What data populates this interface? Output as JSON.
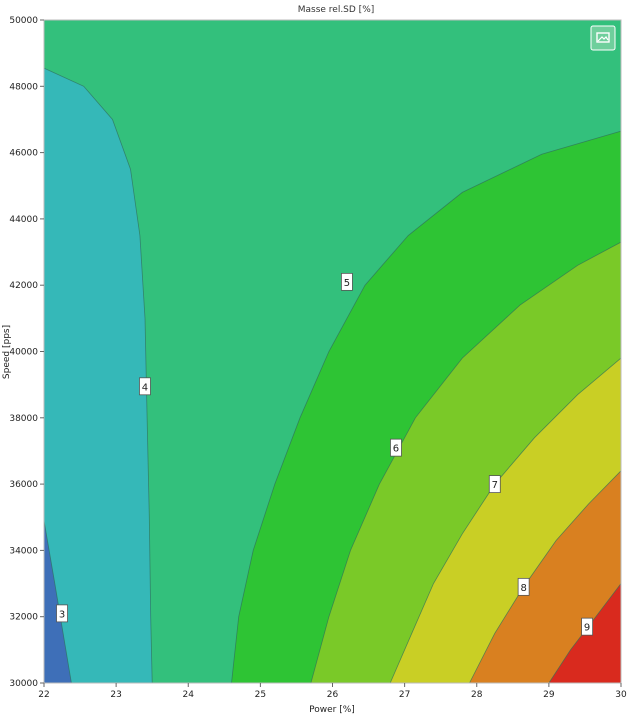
{
  "chart_data": {
    "type": "contour",
    "title": "Masse rel.SD [%]",
    "xlabel": "Power [%]",
    "ylabel": "Speed [pps]",
    "xlim": [
      22,
      30
    ],
    "ylim": [
      30000,
      50000
    ],
    "x_ticks": [
      "22",
      "23",
      "24",
      "25",
      "26",
      "27",
      "28",
      "29",
      "30"
    ],
    "y_ticks": [
      "30000",
      "32000",
      "34000",
      "36000",
      "38000",
      "40000",
      "42000",
      "44000",
      "46000",
      "48000",
      "50000"
    ],
    "levels": [
      3,
      4,
      5,
      6,
      7,
      8,
      9
    ],
    "region_colors": [
      "#3e6fb8",
      "#35b8b8",
      "#33c07c",
      "#2ec434",
      "#7ac928",
      "#c9cf25",
      "#d98020",
      "#d92a1e"
    ],
    "contours": [
      {
        "label": "3",
        "label_at": [
          22.25,
          32100
        ],
        "points": [
          [
            22.0,
            34900
          ],
          [
            22.15,
            33000
          ],
          [
            22.28,
            31300
          ],
          [
            22.38,
            30000
          ]
        ]
      },
      {
        "label": "4",
        "label_at": [
          23.4,
          38950
        ],
        "points": [
          [
            22.0,
            48550
          ],
          [
            22.55,
            48000
          ],
          [
            22.95,
            47000
          ],
          [
            23.2,
            45500
          ],
          [
            23.33,
            43500
          ],
          [
            23.4,
            41000
          ],
          [
            23.43,
            38000
          ],
          [
            23.46,
            35000
          ],
          [
            23.48,
            32000
          ],
          [
            23.5,
            30000
          ]
        ]
      },
      {
        "label": "5",
        "label_at": [
          26.2,
          42100
        ],
        "points": [
          [
            24.6,
            30000
          ],
          [
            24.7,
            32000
          ],
          [
            24.9,
            34000
          ],
          [
            25.2,
            36000
          ],
          [
            25.55,
            38000
          ],
          [
            25.95,
            40000
          ],
          [
            26.45,
            42000
          ],
          [
            27.05,
            43500
          ],
          [
            27.8,
            44800
          ],
          [
            28.9,
            45950
          ],
          [
            30.0,
            46650
          ]
        ]
      },
      {
        "label": "6",
        "label_at": [
          26.88,
          37100
        ],
        "points": [
          [
            25.7,
            30000
          ],
          [
            25.95,
            32000
          ],
          [
            26.25,
            34000
          ],
          [
            26.65,
            36000
          ],
          [
            27.15,
            38000
          ],
          [
            27.8,
            39800
          ],
          [
            28.6,
            41400
          ],
          [
            29.4,
            42600
          ],
          [
            30.0,
            43300
          ]
        ]
      },
      {
        "label": "7",
        "label_at": [
          28.25,
          36000
        ],
        "points": [
          [
            26.8,
            30000
          ],
          [
            27.1,
            31500
          ],
          [
            27.4,
            33000
          ],
          [
            27.8,
            34500
          ],
          [
            28.25,
            36000
          ],
          [
            28.8,
            37400
          ],
          [
            29.4,
            38700
          ],
          [
            30.0,
            39800
          ]
        ]
      },
      {
        "label": "8",
        "label_at": [
          28.65,
          32900
        ],
        "points": [
          [
            27.9,
            30000
          ],
          [
            28.25,
            31500
          ],
          [
            28.65,
            32900
          ],
          [
            29.1,
            34300
          ],
          [
            29.55,
            35400
          ],
          [
            30.0,
            36400
          ]
        ]
      },
      {
        "label": "9",
        "label_at": [
          29.53,
          31700
        ],
        "points": [
          [
            29.0,
            30000
          ],
          [
            29.3,
            31000
          ],
          [
            29.65,
            32000
          ],
          [
            30.0,
            33000
          ]
        ]
      }
    ],
    "grid": false,
    "legend": "none"
  },
  "toolbar": {
    "image_icon": "image-icon"
  }
}
